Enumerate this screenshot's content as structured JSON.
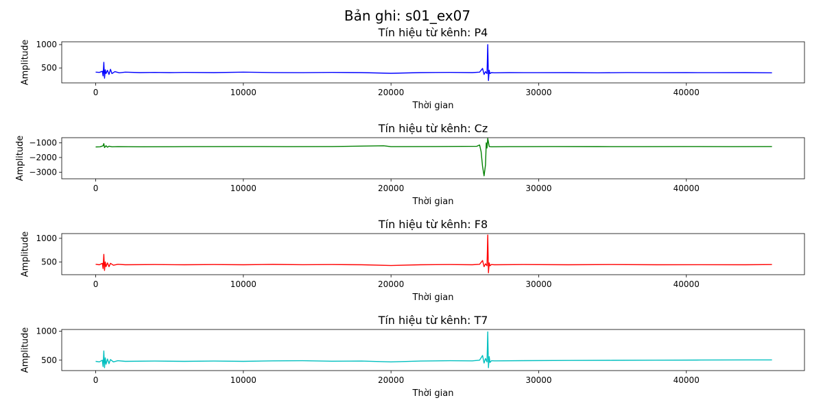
{
  "suptitle": "Bản ghi: s01_ex07",
  "chart_data": [
    {
      "type": "line",
      "title": "Tín hiệu từ kênh: P4",
      "xlabel": "Thời gian",
      "ylabel": "Amplitude",
      "color": "#0000ff",
      "xlim": [
        -2300,
        48000
      ],
      "ylim": [
        180,
        1060
      ],
      "xticks": [
        0,
        10000,
        20000,
        30000,
        40000
      ],
      "xtick_labels": [
        "0",
        "10000",
        "20000",
        "30000",
        "40000"
      ],
      "yticks": [
        500,
        1000
      ],
      "ytick_labels": [
        "500",
        "1000"
      ],
      "grid": false,
      "series": [
        {
          "x": [
            0,
            250,
            450,
            500,
            550,
            600,
            650,
            700,
            800,
            900,
            1000,
            1100,
            1300,
            1600,
            2000,
            3000,
            4000,
            5000,
            6000,
            8000,
            10000,
            12000,
            14000,
            16000,
            18000,
            20000,
            22000,
            24000,
            25500,
            26000,
            26200,
            26300,
            26400,
            26500,
            26550,
            26600,
            26650,
            26700,
            26800,
            27000,
            28000,
            30000,
            32000,
            34000,
            36000,
            38000,
            40000,
            42000,
            44000,
            45800
          ],
          "y": [
            410,
            405,
            430,
            330,
            620,
            280,
            460,
            380,
            450,
            360,
            470,
            380,
            420,
            395,
            410,
            400,
            405,
            400,
            405,
            400,
            410,
            402,
            398,
            405,
            400,
            385,
            400,
            405,
            400,
            410,
            490,
            360,
            420,
            380,
            1000,
            230,
            450,
            380,
            400,
            395,
            400,
            398,
            400,
            395,
            402,
            398,
            400,
            398,
            400,
            395
          ]
        }
      ]
    },
    {
      "type": "line",
      "title": "Tín hiệu từ kênh: Cz",
      "xlabel": "Thời gian",
      "ylabel": "Amplitude",
      "color": "#008000",
      "xlim": [
        -2300,
        48000
      ],
      "ylim": [
        -3450,
        -650
      ],
      "xticks": [
        0,
        10000,
        20000,
        30000,
        40000
      ],
      "xtick_labels": [
        "0",
        "10000",
        "20000",
        "30000",
        "40000"
      ],
      "yticks": [
        -3000,
        -2000,
        -1000
      ],
      "ytick_labels": [
        "−3000",
        "−2000",
        "−1000"
      ],
      "grid": false,
      "series": [
        {
          "x": [
            0,
            300,
            500,
            550,
            600,
            700,
            800,
            900,
            1100,
            1500,
            3000,
            6000,
            10000,
            13000,
            16000,
            19500,
            20000,
            23000,
            25800,
            26000,
            26100,
            26200,
            26300,
            26400,
            26450,
            26500,
            26550,
            26650,
            26800,
            28000,
            31000,
            34000,
            37000,
            40000,
            43000,
            45800
          ],
          "y": [
            -1280,
            -1270,
            -1200,
            -1050,
            -1320,
            -1200,
            -1300,
            -1230,
            -1270,
            -1260,
            -1270,
            -1260,
            -1250,
            -1260,
            -1250,
            -1200,
            -1260,
            -1250,
            -1240,
            -1150,
            -1600,
            -2600,
            -3250,
            -2500,
            -1000,
            -1350,
            -700,
            -1250,
            -1270,
            -1260,
            -1250,
            -1255,
            -1260,
            -1250,
            -1260,
            -1250
          ]
        }
      ]
    },
    {
      "type": "line",
      "title": "Tín hiệu từ kênh: F8",
      "xlabel": "Thời gian",
      "ylabel": "Amplitude",
      "color": "#ff0000",
      "xlim": [
        -2300,
        48000
      ],
      "ylim": [
        230,
        1100
      ],
      "xticks": [
        0,
        10000,
        20000,
        30000,
        40000
      ],
      "xtick_labels": [
        "0",
        "10000",
        "20000",
        "30000",
        "40000"
      ],
      "yticks": [
        500,
        1000
      ],
      "ytick_labels": [
        "500",
        "1000"
      ],
      "grid": false,
      "series": [
        {
          "x": [
            0,
            250,
            450,
            500,
            550,
            600,
            650,
            700,
            800,
            900,
            1000,
            1200,
            1500,
            2000,
            4000,
            6000,
            8000,
            10000,
            12000,
            14000,
            16000,
            18000,
            20000,
            22000,
            24000,
            25500,
            26000,
            26200,
            26300,
            26400,
            26500,
            26550,
            26600,
            26650,
            26700,
            26800,
            27000,
            29000,
            32000,
            35000,
            38000,
            41000,
            44000,
            45800
          ],
          "y": [
            450,
            440,
            470,
            360,
            660,
            320,
            500,
            400,
            480,
            400,
            470,
            430,
            450,
            440,
            445,
            440,
            445,
            440,
            448,
            442,
            445,
            440,
            425,
            440,
            445,
            440,
            450,
            530,
            400,
            460,
            420,
            1070,
            270,
            480,
            420,
            445,
            440,
            445,
            440,
            445,
            440,
            442,
            440,
            445
          ]
        }
      ]
    },
    {
      "type": "line",
      "title": "Tín hiệu từ kênh: T7",
      "xlabel": "Thời gian",
      "ylabel": "Amplitude",
      "color": "#00bfbf",
      "xlim": [
        -2300,
        48000
      ],
      "ylim": [
        320,
        1030
      ],
      "xticks": [
        0,
        10000,
        20000,
        30000,
        40000
      ],
      "xtick_labels": [
        "0",
        "10000",
        "20000",
        "30000",
        "40000"
      ],
      "yticks": [
        500,
        1000
      ],
      "ytick_labels": [
        "500",
        "1000"
      ],
      "grid": false,
      "series": [
        {
          "x": [
            0,
            250,
            450,
            500,
            550,
            600,
            650,
            700,
            800,
            900,
            1000,
            1200,
            1500,
            2000,
            4000,
            6000,
            8000,
            10000,
            12000,
            14000,
            16000,
            18000,
            20000,
            22000,
            24000,
            25500,
            26000,
            26200,
            26300,
            26400,
            26500,
            26550,
            26600,
            26650,
            26700,
            26800,
            27000,
            29000,
            32000,
            35000,
            38000,
            41000,
            44000,
            45800
          ],
          "y": [
            480,
            470,
            500,
            390,
            660,
            370,
            540,
            430,
            520,
            440,
            510,
            470,
            490,
            480,
            485,
            480,
            485,
            480,
            488,
            490,
            482,
            485,
            470,
            485,
            490,
            488,
            500,
            580,
            450,
            530,
            470,
            990,
            370,
            560,
            460,
            490,
            488,
            492,
            495,
            498,
            500,
            502,
            505,
            505
          ]
        }
      ]
    }
  ]
}
